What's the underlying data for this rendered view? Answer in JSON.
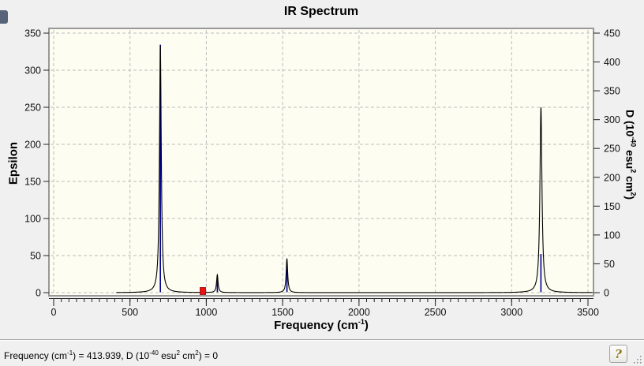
{
  "title": "IR Spectrum",
  "help_label": "?",
  "colors": {
    "window_bg": "#f0f0f0",
    "plot_bg": "#fdfdf1",
    "grid": "#bdbdbd",
    "frame": "#989898",
    "curve": "#000000",
    "stick": "#00008b",
    "marker": "#ee1111",
    "marker_border": "#8f0000",
    "tick_text": "#111111"
  },
  "labels": {
    "y_left_title": "Epsilon",
    "y_right_segs": [
      "D (10",
      "-40",
      " esu",
      "2",
      " cm",
      "2",
      ")"
    ],
    "x_title_segs": [
      "Frequency (cm",
      "-1",
      ")"
    ]
  },
  "statusbar": {
    "segs": [
      "Frequency (cm",
      "-1",
      ") = 413.939, D (10",
      "-40",
      " esu",
      "2",
      " cm",
      "2",
      ") = 0"
    ]
  },
  "chart_data": {
    "type": "line",
    "title": "IR Spectrum",
    "xlabel": "Frequency (cm-1)",
    "ylabel_left": "Epsilon",
    "ylabel_right": "D (10-40 esu2 cm2)",
    "xlim": [
      0,
      3500
    ],
    "ylim_left": [
      0,
      350
    ],
    "ylim_right": [
      0,
      450
    ],
    "x_ticks": [
      0,
      500,
      1000,
      1500,
      2000,
      2500,
      3000,
      3500
    ],
    "x_minor_step": 50,
    "y_left_ticks": [
      0,
      50,
      100,
      150,
      200,
      250,
      300,
      350
    ],
    "y_right_ticks": [
      0,
      50,
      100,
      150,
      200,
      250,
      300,
      350,
      400,
      450
    ],
    "grid": "dashed, at every major tick (500 cm-1 vertical, 50 epsilon horizontal)",
    "legend": "none",
    "series": [
      {
        "name": "epsilon-curve",
        "style": "lorentzian-sum",
        "color": "#000000",
        "axis": "left"
      },
      {
        "name": "dipole-strength-sticks",
        "style": "stick",
        "color": "#00008b",
        "axis": "right"
      }
    ],
    "peaks": [
      {
        "frequency": 699,
        "epsilon": 333,
        "d": 430,
        "hwhm": 7
      },
      {
        "frequency": 1072,
        "epsilon": 24,
        "d": 26,
        "hwhm": 6
      },
      {
        "frequency": 1528,
        "epsilon": 46,
        "d": 52,
        "hwhm": 6
      },
      {
        "frequency": 3192,
        "epsilon": 250,
        "d": 67,
        "hwhm": 8
      }
    ],
    "curve_domain": [
      410,
      3530
    ],
    "selected_mode_marker": {
      "frequency": 977,
      "d": 0
    }
  }
}
